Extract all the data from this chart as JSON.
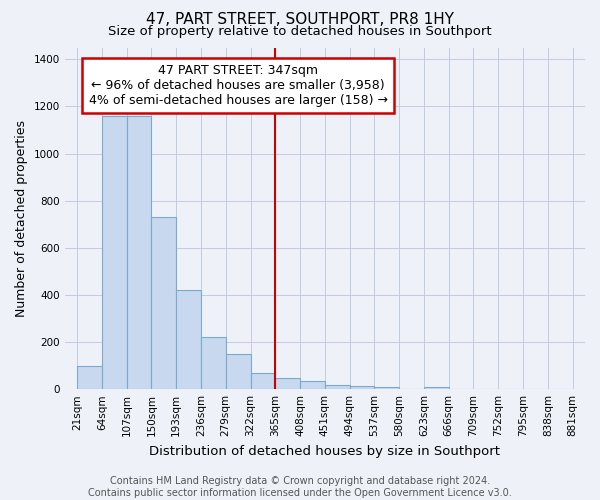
{
  "title": "47, PART STREET, SOUTHPORT, PR8 1HY",
  "subtitle": "Size of property relative to detached houses in Southport",
  "xlabel": "Distribution of detached houses by size in Southport",
  "ylabel": "Number of detached properties",
  "bar_labels": [
    "21sqm",
    "64sqm",
    "107sqm",
    "150sqm",
    "193sqm",
    "236sqm",
    "279sqm",
    "322sqm",
    "365sqm",
    "408sqm",
    "451sqm",
    "494sqm",
    "537sqm",
    "580sqm",
    "623sqm",
    "666sqm",
    "709sqm",
    "752sqm",
    "795sqm",
    "838sqm",
    "881sqm"
  ],
  "bin_heights": [
    100,
    1160,
    1160,
    730,
    420,
    220,
    150,
    70,
    48,
    35,
    18,
    15,
    10,
    0,
    10,
    0,
    0,
    0,
    0,
    0
  ],
  "bar_color": "#c8d8ee",
  "bar_edge_color": "#7aaad0",
  "vline_x_label": "365sqm",
  "vline_color": "#cc0000",
  "annotation_text": "47 PART STREET: 347sqm\n← 96% of detached houses are smaller (3,958)\n4% of semi-detached houses are larger (158) →",
  "box_color": "#ffffff",
  "box_edge_color": "#cc0000",
  "ylim": [
    0,
    1450
  ],
  "footer1": "Contains HM Land Registry data © Crown copyright and database right 2024.",
  "footer2": "Contains public sector information licensed under the Open Government Licence v3.0.",
  "bg_color": "#eef2f8",
  "grid_color": "#c0cce0",
  "title_fontsize": 11,
  "subtitle_fontsize": 9.5,
  "xlabel_fontsize": 9.5,
  "ylabel_fontsize": 9,
  "tick_fontsize": 7.5,
  "annotation_fontsize": 9,
  "footer_fontsize": 7
}
